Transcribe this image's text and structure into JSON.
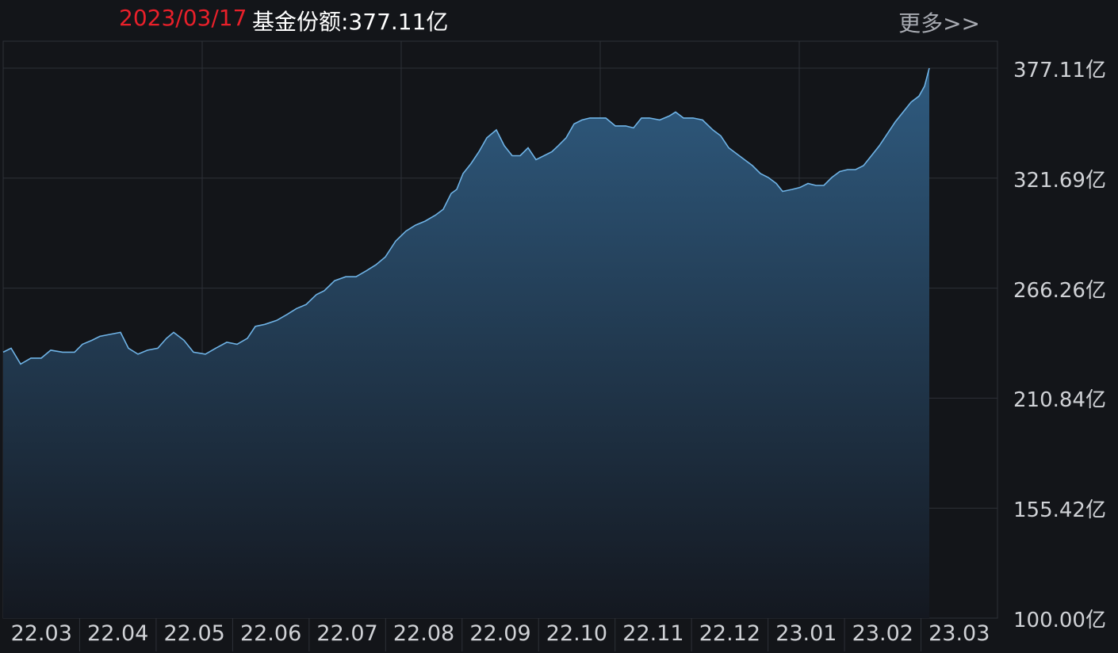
{
  "header": {
    "date": "2023/03/17",
    "label": "基金份额:377.11亿",
    "more": "更多>>"
  },
  "colors": {
    "background": "#131519",
    "grid": "#2e3138",
    "line": "#6fb3e6",
    "fill_top": "#2f5b80",
    "fill_bottom": "#141820",
    "date_text": "#e8202a"
  },
  "chart_data": {
    "type": "area",
    "y_unit": "亿",
    "ylim": [
      100.0,
      377.11
    ],
    "y_tick_labels": [
      "377.11亿",
      "321.69亿",
      "266.26亿",
      "210.84亿",
      "155.42亿",
      "100.00亿"
    ],
    "x_tick_labels": [
      "22.03",
      "22.04",
      "22.05",
      "22.06",
      "22.07",
      "22.08",
      "22.09",
      "22.10",
      "22.11",
      "22.12",
      "23.01",
      "23.02",
      "23.03"
    ],
    "grid": true,
    "series": [
      {
        "values": [
          [
            0,
            234
          ],
          [
            10,
            236
          ],
          [
            22,
            228
          ],
          [
            35,
            231
          ],
          [
            48,
            231
          ],
          [
            60,
            235
          ],
          [
            75,
            234
          ],
          [
            90,
            234
          ],
          [
            100,
            238
          ],
          [
            112,
            240
          ],
          [
            122,
            242
          ],
          [
            135,
            243
          ],
          [
            148,
            244
          ],
          [
            158,
            236
          ],
          [
            170,
            233
          ],
          [
            182,
            235
          ],
          [
            195,
            236
          ],
          [
            206,
            241
          ],
          [
            215,
            244
          ],
          [
            228,
            240
          ],
          [
            240,
            234
          ],
          [
            255,
            233
          ],
          [
            268,
            236
          ],
          [
            282,
            239
          ],
          [
            295,
            238
          ],
          [
            308,
            241
          ],
          [
            318,
            247
          ],
          [
            330,
            248
          ],
          [
            345,
            250
          ],
          [
            358,
            253
          ],
          [
            370,
            256
          ],
          [
            382,
            258
          ],
          [
            395,
            263
          ],
          [
            405,
            265
          ],
          [
            418,
            270
          ],
          [
            432,
            272
          ],
          [
            445,
            272
          ],
          [
            458,
            275
          ],
          [
            470,
            278
          ],
          [
            482,
            282
          ],
          [
            495,
            290
          ],
          [
            508,
            295
          ],
          [
            520,
            298
          ],
          [
            532,
            300
          ],
          [
            545,
            303
          ],
          [
            555,
            306
          ],
          [
            565,
            314
          ],
          [
            572,
            316
          ],
          [
            580,
            324
          ],
          [
            590,
            329
          ],
          [
            600,
            335
          ],
          [
            610,
            342
          ],
          [
            622,
            346
          ],
          [
            632,
            338
          ],
          [
            642,
            333
          ],
          [
            652,
            333
          ],
          [
            662,
            337
          ],
          [
            672,
            331
          ],
          [
            682,
            333
          ],
          [
            692,
            335
          ],
          [
            700,
            338
          ],
          [
            710,
            342
          ],
          [
            720,
            349
          ],
          [
            730,
            351
          ],
          [
            740,
            352
          ],
          [
            750,
            352
          ],
          [
            760,
            352
          ],
          [
            772,
            348
          ],
          [
            785,
            348
          ],
          [
            795,
            347
          ],
          [
            805,
            352
          ],
          [
            815,
            352
          ],
          [
            828,
            351
          ],
          [
            840,
            353
          ],
          [
            848,
            355
          ],
          [
            858,
            352
          ],
          [
            870,
            352
          ],
          [
            882,
            351
          ],
          [
            895,
            346
          ],
          [
            905,
            343
          ],
          [
            915,
            337
          ],
          [
            925,
            334
          ],
          [
            935,
            331
          ],
          [
            945,
            328
          ],
          [
            955,
            324
          ],
          [
            965,
            322
          ],
          [
            975,
            319
          ],
          [
            983,
            315
          ],
          [
            995,
            316
          ],
          [
            1005,
            317
          ],
          [
            1015,
            319
          ],
          [
            1025,
            318
          ],
          [
            1035,
            318
          ],
          [
            1045,
            322
          ],
          [
            1055,
            325
          ],
          [
            1065,
            326
          ],
          [
            1075,
            326
          ],
          [
            1085,
            328
          ],
          [
            1095,
            333
          ],
          [
            1105,
            338
          ],
          [
            1115,
            344
          ],
          [
            1125,
            350
          ],
          [
            1135,
            355
          ],
          [
            1145,
            360
          ],
          [
            1155,
            363
          ],
          [
            1162,
            368
          ],
          [
            1168,
            377.11
          ]
        ]
      }
    ]
  }
}
